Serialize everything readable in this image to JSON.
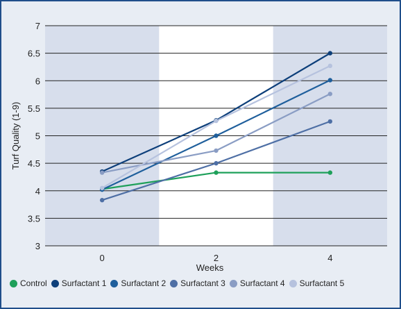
{
  "chart_data": {
    "type": "line",
    "xlabel": "Weeks",
    "ylabel": "Turf Quality (1-9)",
    "x": [
      0,
      2,
      4
    ],
    "ylim": [
      3,
      7
    ],
    "yticks": [
      "3",
      "3.5",
      "4",
      "4.5",
      "5",
      "5.5",
      "6",
      "6.5",
      "7"
    ],
    "xticks": [
      "0",
      "2",
      "4"
    ],
    "grid": "horizontal",
    "legend_position": "bottom",
    "shaded_regions": [
      [
        -1,
        1
      ],
      [
        3,
        5
      ]
    ],
    "colors": {
      "plot_bg": "#ffffff",
      "shade": "#d7deec",
      "grid": "#222222"
    },
    "series": [
      {
        "name": "Control",
        "values": [
          4.03,
          4.33,
          4.33
        ],
        "color": "#1ea05a"
      },
      {
        "name": "Surfactant 1",
        "values": [
          4.35,
          5.28,
          6.5
        ],
        "color": "#0d3f7a"
      },
      {
        "name": "Surfactant 2",
        "values": [
          4.02,
          5.0,
          6.01
        ],
        "color": "#1f5f9c"
      },
      {
        "name": "Surfactant 3",
        "values": [
          3.83,
          4.5,
          5.26
        ],
        "color": "#4e6fa5"
      },
      {
        "name": "Surfactant 4",
        "values": [
          4.33,
          4.73,
          5.76
        ],
        "color": "#8a9dc4"
      },
      {
        "name": "Surfactant 5",
        "values": [
          4.05,
          5.27,
          6.27
        ],
        "color": "#b6c2de"
      }
    ]
  }
}
